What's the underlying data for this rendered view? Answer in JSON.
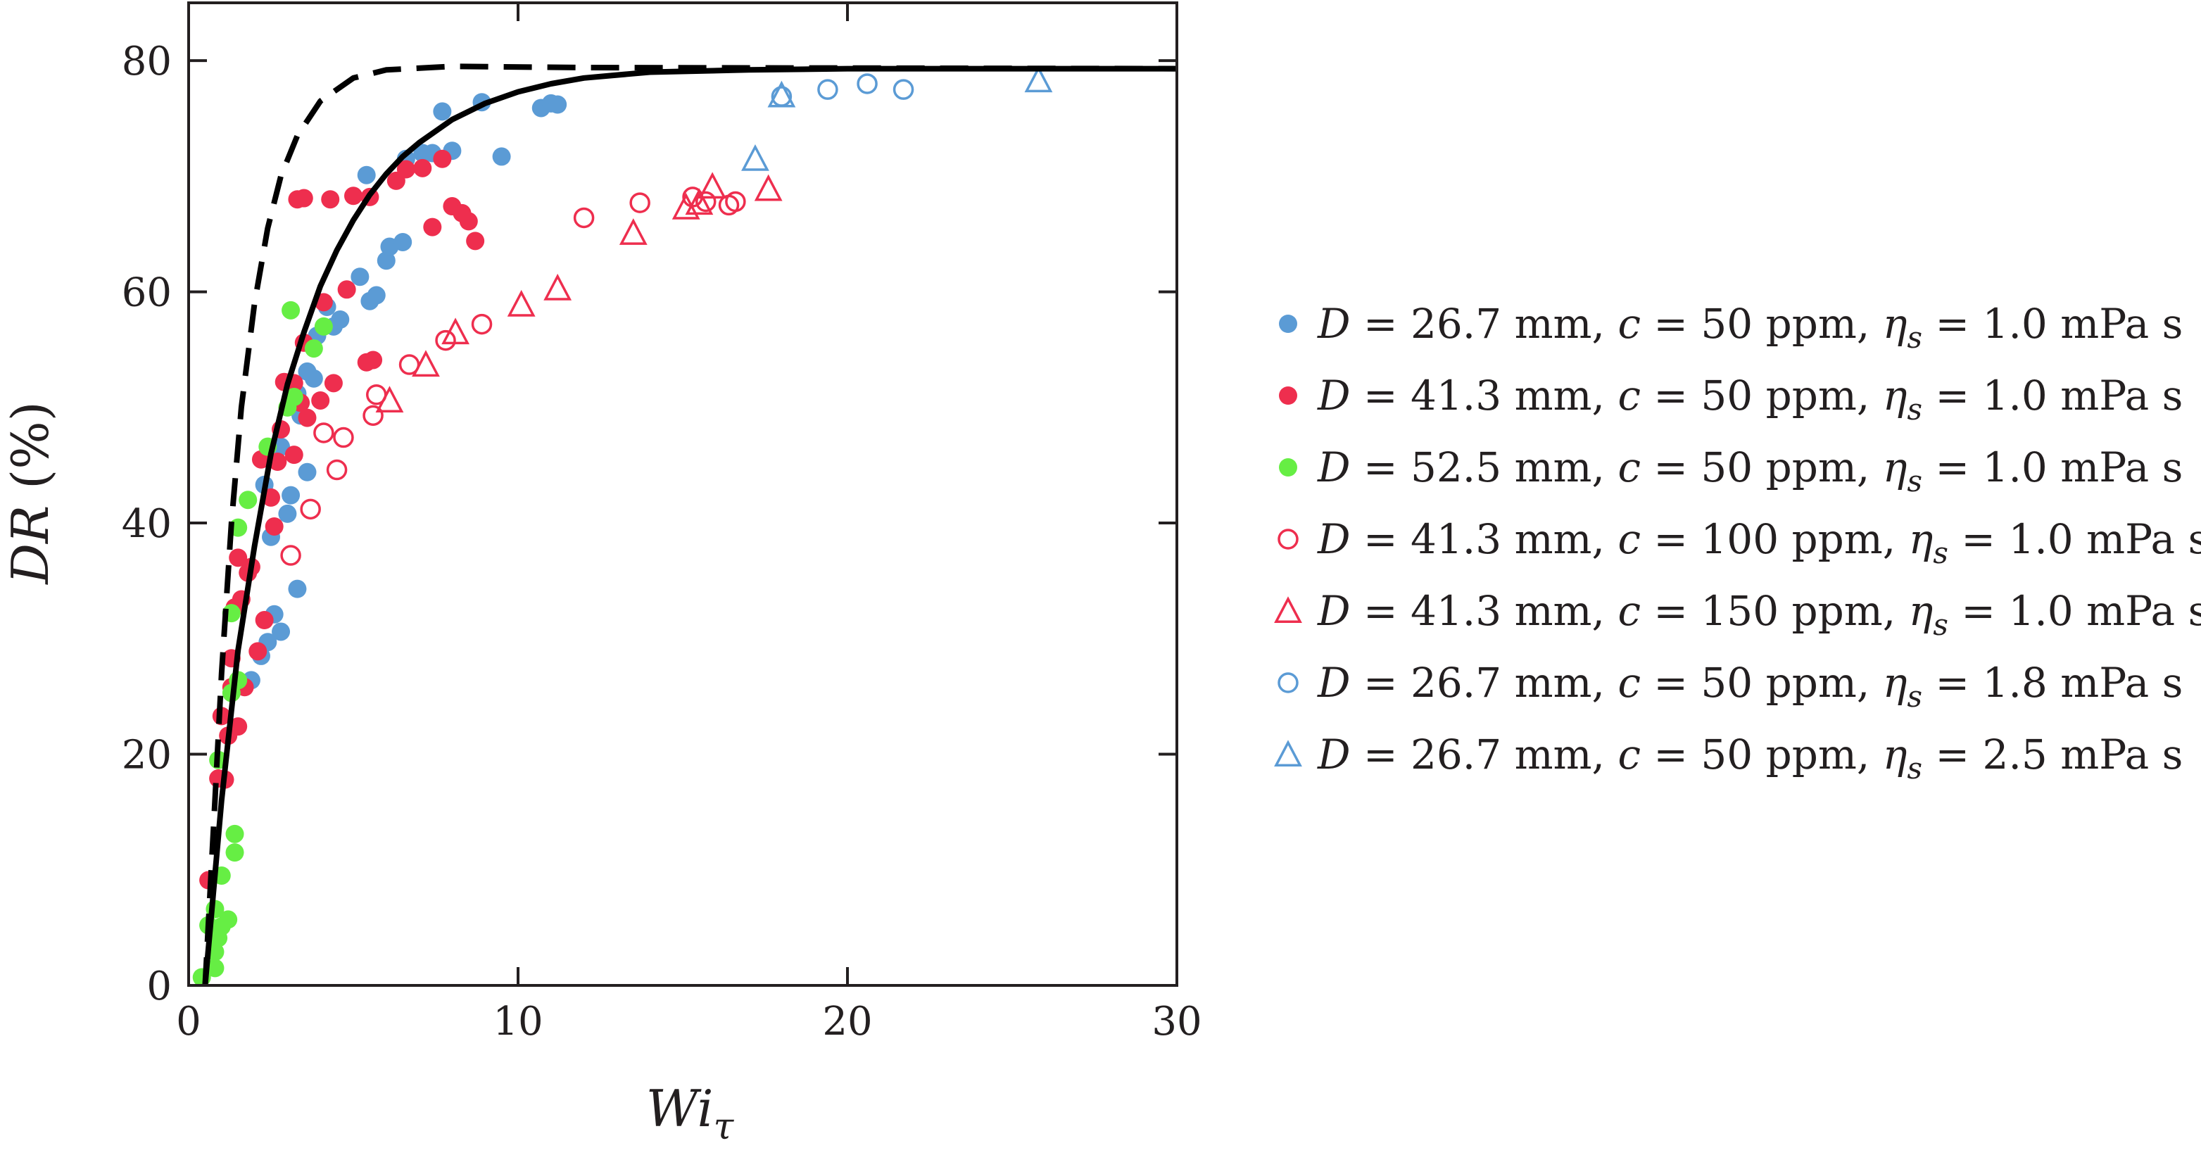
{
  "chart_data": {
    "type": "scatter",
    "xlabel": "Wi",
    "xlabel_sub": "τ",
    "ylabel": "DR",
    "ylabel_unit": " (%)",
    "xlim": [
      0,
      30
    ],
    "ylim": [
      0,
      85
    ],
    "xticks": [
      0,
      10,
      20,
      30
    ],
    "yticks": [
      0,
      20,
      40,
      60,
      80
    ],
    "grid": false,
    "legend_position": "right",
    "series": [
      {
        "legend": {
          "D": "26.7 mm",
          "c": "50 ppm",
          "eta": "1.0 mPa s"
        },
        "marker": "filled-circle",
        "color": "#5b9bd5",
        "points": [
          [
            1.9,
            26.4
          ],
          [
            2.2,
            28.5
          ],
          [
            2.4,
            29.7
          ],
          [
            2.6,
            32.1
          ],
          [
            2.8,
            30.6
          ],
          [
            3.3,
            34.3
          ],
          [
            2.5,
            38.8
          ],
          [
            3.0,
            40.8
          ],
          [
            3.1,
            42.4
          ],
          [
            2.3,
            43.3
          ],
          [
            3.6,
            44.4
          ],
          [
            3.4,
            49.3
          ],
          [
            2.8,
            46.6
          ],
          [
            3.3,
            51.2
          ],
          [
            3.8,
            52.5
          ],
          [
            3.6,
            53.1
          ],
          [
            3.9,
            56.2
          ],
          [
            4.4,
            57.0
          ],
          [
            4.6,
            57.6
          ],
          [
            4.2,
            58.7
          ],
          [
            5.5,
            59.2
          ],
          [
            5.7,
            59.7
          ],
          [
            5.2,
            61.3
          ],
          [
            6.0,
            62.7
          ],
          [
            6.1,
            63.9
          ],
          [
            6.5,
            64.3
          ],
          [
            5.4,
            70.1
          ],
          [
            6.6,
            71.5
          ],
          [
            7.1,
            72.0
          ],
          [
            7.4,
            72.0
          ],
          [
            8.0,
            72.2
          ],
          [
            9.5,
            71.7
          ],
          [
            7.7,
            75.6
          ],
          [
            8.9,
            76.4
          ],
          [
            10.7,
            75.9
          ],
          [
            11.0,
            76.3
          ],
          [
            11.2,
            76.2
          ]
        ]
      },
      {
        "legend": {
          "D": "41.3 mm",
          "c": "50 ppm",
          "eta": "1.0 mPa s"
        },
        "marker": "filled-circle",
        "color": "#ee2e4e",
        "points": [
          [
            0.6,
            9.1
          ],
          [
            0.9,
            17.9
          ],
          [
            1.1,
            17.8
          ],
          [
            1.0,
            23.3
          ],
          [
            1.2,
            21.6
          ],
          [
            1.5,
            22.4
          ],
          [
            1.3,
            25.8
          ],
          [
            1.7,
            25.8
          ],
          [
            1.3,
            28.3
          ],
          [
            2.1,
            28.9
          ],
          [
            2.3,
            31.6
          ],
          [
            1.4,
            32.7
          ],
          [
            1.6,
            33.4
          ],
          [
            1.8,
            35.7
          ],
          [
            1.9,
            36.2
          ],
          [
            1.5,
            37.0
          ],
          [
            2.6,
            39.7
          ],
          [
            2.5,
            42.2
          ],
          [
            2.2,
            45.5
          ],
          [
            2.7,
            45.3
          ],
          [
            3.2,
            45.9
          ],
          [
            2.8,
            48.1
          ],
          [
            3.6,
            49.1
          ],
          [
            3.4,
            50.4
          ],
          [
            4.0,
            50.6
          ],
          [
            2.9,
            52.2
          ],
          [
            3.2,
            52.1
          ],
          [
            4.4,
            52.1
          ],
          [
            3.5,
            55.6
          ],
          [
            4.1,
            59.1
          ],
          [
            4.8,
            60.2
          ],
          [
            5.4,
            53.9
          ],
          [
            5.6,
            54.1
          ],
          [
            3.3,
            68.0
          ],
          [
            3.5,
            68.1
          ],
          [
            4.3,
            68.0
          ],
          [
            5.0,
            68.3
          ],
          [
            5.5,
            68.2
          ],
          [
            6.3,
            69.6
          ],
          [
            6.6,
            70.6
          ],
          [
            7.1,
            70.7
          ],
          [
            7.7,
            71.5
          ],
          [
            7.4,
            65.6
          ],
          [
            8.0,
            67.4
          ],
          [
            8.3,
            66.8
          ],
          [
            8.5,
            66.1
          ],
          [
            8.7,
            64.4
          ]
        ]
      },
      {
        "legend": {
          "D": "52.5 mm",
          "c": "50 ppm",
          "eta": "1.0 mPa s"
        },
        "marker": "filled-circle",
        "color": "#66ee44",
        "points": [
          [
            0.4,
            0.7
          ],
          [
            0.8,
            1.5
          ],
          [
            0.8,
            2.9
          ],
          [
            0.9,
            4.1
          ],
          [
            0.6,
            5.2
          ],
          [
            1.0,
            5.1
          ],
          [
            1.2,
            5.7
          ],
          [
            0.8,
            6.6
          ],
          [
            1.0,
            9.5
          ],
          [
            1.4,
            11.5
          ],
          [
            1.4,
            13.1
          ],
          [
            0.9,
            19.5
          ],
          [
            1.3,
            25.3
          ],
          [
            1.5,
            26.4
          ],
          [
            1.3,
            32.2
          ],
          [
            1.5,
            39.6
          ],
          [
            1.8,
            42.0
          ],
          [
            2.4,
            46.6
          ],
          [
            3.0,
            50.0
          ],
          [
            3.2,
            50.9
          ],
          [
            3.8,
            55.1
          ],
          [
            4.1,
            57.0
          ],
          [
            3.1,
            58.4
          ]
        ]
      },
      {
        "legend": {
          "D": "41.3 mm",
          "c": "100 ppm",
          "eta": "1.0 mPa s"
        },
        "marker": "open-circle",
        "color": "#ee2e4e",
        "points": [
          [
            3.1,
            37.2
          ],
          [
            3.7,
            41.2
          ],
          [
            4.1,
            47.8
          ],
          [
            4.7,
            47.4
          ],
          [
            4.5,
            44.6
          ],
          [
            5.6,
            49.3
          ],
          [
            5.7,
            51.1
          ],
          [
            6.7,
            53.7
          ],
          [
            7.8,
            55.8
          ],
          [
            8.9,
            57.2
          ],
          [
            12.0,
            66.4
          ],
          [
            13.7,
            67.7
          ],
          [
            15.3,
            68.2
          ],
          [
            15.7,
            67.8
          ],
          [
            16.4,
            67.5
          ],
          [
            16.6,
            67.8
          ]
        ]
      },
      {
        "legend": {
          "D": "41.3 mm",
          "c": "150 ppm",
          "eta": "1.0 mPa s"
        },
        "marker": "open-triangle",
        "color": "#ee2e4e",
        "points": [
          [
            6.1,
            50.6
          ],
          [
            7.2,
            53.7
          ],
          [
            8.1,
            56.5
          ],
          [
            10.1,
            58.9
          ],
          [
            11.2,
            60.3
          ],
          [
            13.5,
            65.1
          ],
          [
            15.1,
            67.3
          ],
          [
            15.5,
            67.7
          ],
          [
            15.9,
            69.1
          ],
          [
            17.6,
            68.9
          ]
        ]
      },
      {
        "legend": {
          "D": "26.7 mm",
          "c": "50 ppm",
          "eta": "1.8 mPa s"
        },
        "marker": "open-circle",
        "color": "#5b9bd5",
        "points": [
          [
            18.0,
            76.9
          ],
          [
            19.4,
            77.5
          ],
          [
            20.6,
            78.0
          ],
          [
            21.7,
            77.5
          ]
        ]
      },
      {
        "legend": {
          "D": "26.7 mm",
          "c": "50 ppm",
          "eta": "2.5 mPa s"
        },
        "marker": "open-triangle",
        "color": "#5b9bd5",
        "points": [
          [
            17.2,
            71.5
          ],
          [
            18.0,
            77.0
          ],
          [
            25.8,
            78.3
          ]
        ]
      }
    ],
    "curves": [
      {
        "style": "solid",
        "color": "#000000",
        "points": [
          [
            0.5,
            0
          ],
          [
            1.0,
            16
          ],
          [
            1.5,
            29
          ],
          [
            2.0,
            38
          ],
          [
            2.5,
            46
          ],
          [
            3.0,
            52
          ],
          [
            3.5,
            56.5
          ],
          [
            4.0,
            60.5
          ],
          [
            4.5,
            63.6
          ],
          [
            5.0,
            66.2
          ],
          [
            5.5,
            68.4
          ],
          [
            6.0,
            70.2
          ],
          [
            6.5,
            71.7
          ],
          [
            7.0,
            72.9
          ],
          [
            8.0,
            74.9
          ],
          [
            9.0,
            76.3
          ],
          [
            10.0,
            77.3
          ],
          [
            11.0,
            78.0
          ],
          [
            12.0,
            78.5
          ],
          [
            14.0,
            79.0
          ],
          [
            17.0,
            79.2
          ],
          [
            20.0,
            79.3
          ],
          [
            30.0,
            79.3
          ]
        ]
      },
      {
        "style": "dashed",
        "color": "#000000",
        "points": [
          [
            0.5,
            0
          ],
          [
            0.8,
            16
          ],
          [
            1.0,
            27
          ],
          [
            1.3,
            40
          ],
          [
            1.6,
            50
          ],
          [
            2.0,
            59
          ],
          [
            2.4,
            65.5
          ],
          [
            2.8,
            70
          ],
          [
            3.3,
            73.5
          ],
          [
            4.0,
            76.5
          ],
          [
            5.0,
            78.5
          ],
          [
            6.0,
            79.2
          ],
          [
            8.0,
            79.5
          ],
          [
            12.0,
            79.4
          ],
          [
            30.0,
            79.3
          ]
        ]
      }
    ]
  }
}
